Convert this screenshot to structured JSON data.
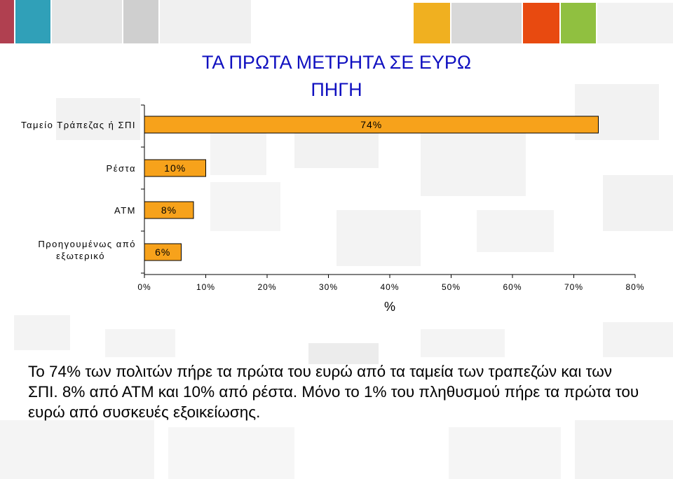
{
  "chart_data": {
    "type": "bar",
    "orientation": "horizontal",
    "title": "ΤΑ ΠΡΩΤΑ ΜΕΤΡΗΤΑ ΣΕ ΕΥΡΩ",
    "subtitle": "ΠΗΓΗ",
    "categories": [
      "Ταμείο Τράπεζας ή ΣΠΙ",
      "Ρέστα",
      "ΑΤΜ",
      "Προηγουμένως από εξωτερικό"
    ],
    "values": [
      74,
      10,
      8,
      6
    ],
    "value_labels": [
      "74%",
      "10%",
      "8%",
      "6%"
    ],
    "xlabel": "%",
    "xlim": [
      0,
      80
    ],
    "x_ticks": [
      "0%",
      "10%",
      "20%",
      "30%",
      "40%",
      "50%",
      "60%",
      "70%",
      "80%"
    ],
    "bar_color": "#F7A21B",
    "grid": false
  },
  "caption": "Το 74% των πολιτών πήρε τα πρώτα του ευρώ από τα ταμεία των τραπεζών και των ΣΠΙ. 8% από ΑΤΜ και 10% από ρέστα. Μόνο το 1% του πληθυσμού πήρε τα πρώτα του ευρώ από συσκευές εξοικείωσης."
}
